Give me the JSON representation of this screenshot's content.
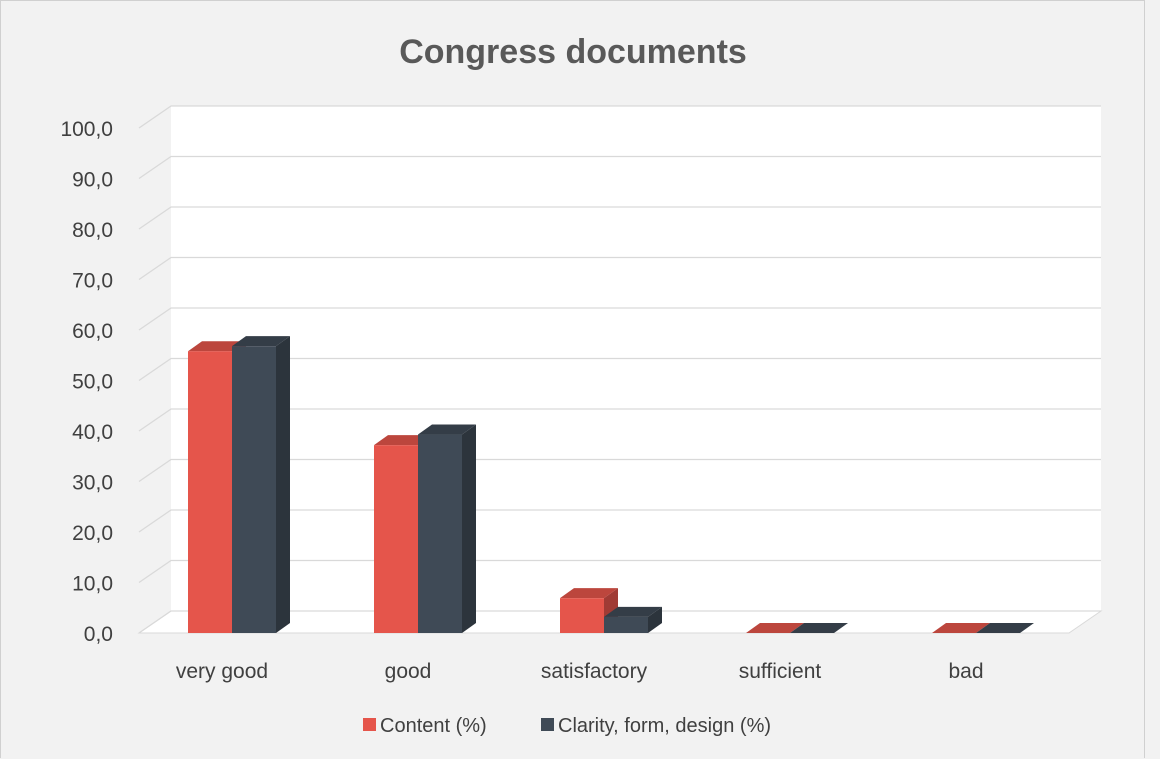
{
  "chart_data": {
    "type": "bar",
    "title": "Congress documents",
    "categories": [
      "very good",
      "good",
      "satisfactory",
      "sufficient",
      "bad"
    ],
    "series": [
      {
        "name": "Content (%)",
        "color": "#e5554b",
        "values": [
          55.8,
          37.2,
          6.9,
          0.0,
          0.0
        ]
      },
      {
        "name": "Clarity, form, design (%)",
        "color": "#3f4a56",
        "values": [
          56.8,
          39.3,
          3.2,
          0.0,
          0.0
        ]
      }
    ],
    "ylim": [
      0,
      100
    ],
    "yticks": [
      "0,0",
      "10,0",
      "20,0",
      "30,0",
      "40,0",
      "50,0",
      "60,0",
      "70,0",
      "80,0",
      "90,0",
      "100,0"
    ],
    "grid": true,
    "legend": "bottom",
    "style": "3d-column"
  }
}
